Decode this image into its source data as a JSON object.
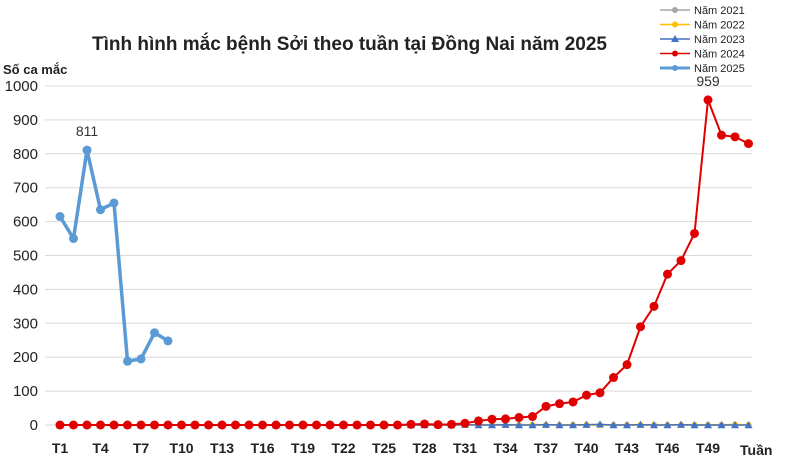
{
  "chart_data": {
    "type": "line",
    "title": "Tình hình mắc bệnh Sởi theo tuần tại Đồng Nai năm 2025",
    "ylabel": "Số ca mắc",
    "xlabel": "Tuần",
    "ylim": [
      0,
      1000
    ],
    "yticks": [
      0,
      100,
      200,
      300,
      400,
      500,
      600,
      700,
      800,
      900,
      1000
    ],
    "xtick_labels": [
      "T1",
      "T4",
      "T7",
      "T10",
      "T13",
      "T16",
      "T19",
      "T22",
      "T25",
      "T28",
      "T31",
      "T34",
      "T37",
      "T40",
      "T43",
      "T46",
      "T49"
    ],
    "grid": "horizontal",
    "legend_position": "top-right",
    "annotations": [
      {
        "series": "Năm 2025",
        "week": 3,
        "text": "811"
      },
      {
        "series": "Năm 2024",
        "week": 49,
        "text": "959"
      }
    ],
    "series": [
      {
        "name": "Năm 2021",
        "color": "#a6a6a6",
        "marker": "circle",
        "values": [
          0,
          0,
          0,
          0,
          0,
          0,
          0,
          0,
          0,
          0,
          0,
          0,
          0,
          0,
          0,
          0,
          0,
          0,
          0,
          0,
          0,
          0,
          0,
          0,
          0,
          0,
          0,
          0,
          0,
          0,
          0,
          0,
          0,
          0,
          0,
          0,
          0,
          0,
          0,
          0,
          0,
          0,
          0,
          0,
          0,
          0,
          0,
          0,
          0,
          0,
          0,
          0
        ]
      },
      {
        "name": "Năm 2022",
        "color": "#ffc000",
        "marker": "circle",
        "values": [
          0,
          0,
          0,
          0,
          0,
          0,
          0,
          0,
          0,
          0,
          0,
          0,
          0,
          0,
          0,
          0,
          0,
          0,
          0,
          0,
          0,
          0,
          0,
          0,
          0,
          0,
          0,
          0,
          0,
          0,
          0,
          0,
          0,
          0,
          0,
          0,
          0,
          0,
          0,
          0,
          0,
          0,
          0,
          0,
          0,
          0,
          0,
          0,
          0,
          0,
          2,
          0
        ]
      },
      {
        "name": "Năm 2023",
        "color": "#4472c4",
        "marker": "triangle",
        "values": [
          0,
          0,
          0,
          0,
          0,
          0,
          0,
          0,
          0,
          0,
          0,
          0,
          0,
          0,
          0,
          0,
          0,
          0,
          0,
          0,
          0,
          0,
          0,
          0,
          0,
          0,
          0,
          0,
          0,
          0,
          1,
          0,
          0,
          1,
          0,
          0,
          1,
          0,
          0,
          1,
          2,
          0,
          0,
          1,
          0,
          0,
          1,
          0,
          0,
          0,
          0,
          0
        ]
      },
      {
        "name": "Năm 2024",
        "color": "#e00000",
        "marker": "circle",
        "values": [
          0,
          0,
          0,
          0,
          0,
          0,
          0,
          0,
          0,
          0,
          0,
          0,
          0,
          0,
          0,
          0,
          0,
          0,
          0,
          0,
          0,
          0,
          0,
          0,
          0,
          0,
          2,
          3,
          1,
          2,
          5,
          12,
          17,
          18,
          22,
          25,
          55,
          63,
          68,
          88,
          95,
          140,
          178,
          290,
          350,
          445,
          485,
          565,
          959,
          855,
          850,
          830
        ]
      },
      {
        "name": "Năm 2025",
        "color": "#5b9bd5",
        "marker": "circle",
        "values": [
          615,
          550,
          811,
          635,
          655,
          188,
          195,
          272,
          248
        ]
      }
    ]
  }
}
